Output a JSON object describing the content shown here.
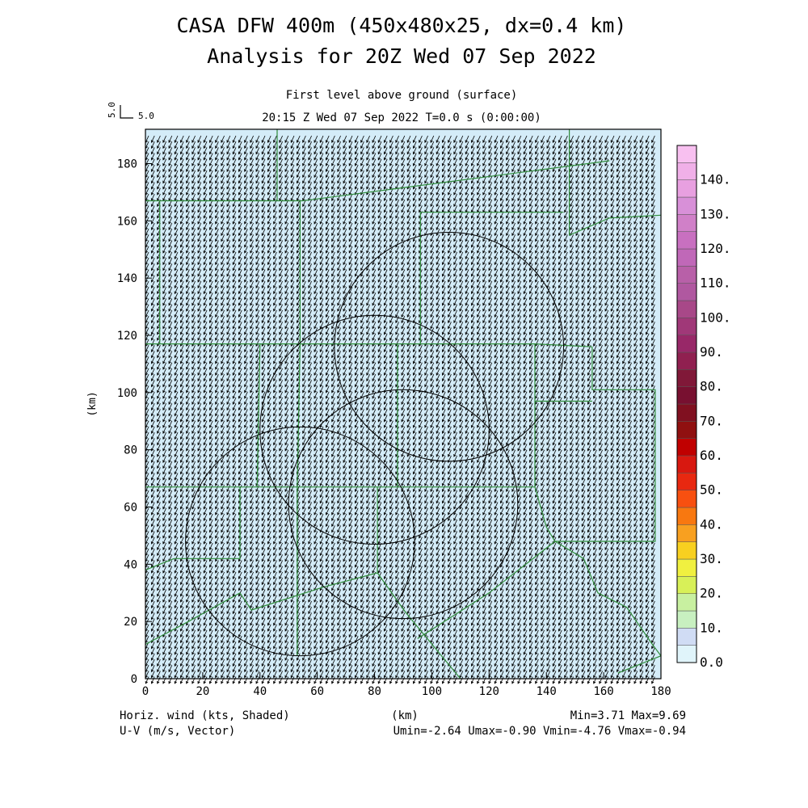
{
  "header": {
    "title_line1": "CASA DFW 400m (450x480x25, dx=0.4 km)",
    "title_line2": "Analysis for 20Z Wed 07 Sep 2022",
    "level": "First level above ground (surface)",
    "time": "20:15 Z Wed 07 Sep 2022   T=0.0 s (0:00:00)"
  },
  "ref_vector": {
    "label_v": "5.0",
    "label_h": "5.0"
  },
  "footer": {
    "left1": "Horiz. wind (kts, Shaded)",
    "left2": "U-V (m/s, Vector)",
    "center": "(km)",
    "right1": "Min=3.71 Max=9.69",
    "right2": "Umin=-2.64 Umax=-0.90 Vmin=-4.76 Vmax=-0.94"
  },
  "chart_data": {
    "type": "heatmap",
    "xlabel": "(km)",
    "ylabel": "(km)",
    "xlim": [
      0,
      180
    ],
    "ylim": [
      0,
      192
    ],
    "x_ticks": [
      0,
      20,
      40,
      60,
      80,
      100,
      120,
      140,
      160,
      180
    ],
    "y_ticks": [
      0,
      20,
      40,
      60,
      80,
      100,
      120,
      140,
      160,
      180
    ],
    "field_color": "#d4ecf8",
    "field_min": 3.71,
    "field_max": 9.69,
    "wind_u_range": [
      -2.64,
      -0.9
    ],
    "wind_v_range": [
      -4.76,
      -0.94
    ],
    "radar_rings": [
      {
        "cx": 54,
        "cy": 48,
        "r": 40
      },
      {
        "cx": 80,
        "cy": 87,
        "r": 40
      },
      {
        "cx": 90,
        "cy": 61,
        "r": 40
      },
      {
        "cx": 106,
        "cy": 116,
        "r": 40
      }
    ],
    "boundaries": [
      [
        [
          0,
          167
        ],
        [
          55,
          167
        ],
        [
          162,
          181
        ]
      ],
      [
        [
          0,
          117
        ],
        [
          40,
          117
        ],
        [
          136,
          117
        ],
        [
          156,
          116
        ]
      ],
      [
        [
          0,
          67
        ],
        [
          33,
          67
        ],
        [
          136,
          67
        ]
      ],
      [
        [
          46,
          192
        ],
        [
          46,
          167
        ]
      ],
      [
        [
          5,
          167
        ],
        [
          5,
          117
        ]
      ],
      [
        [
          54,
          167
        ],
        [
          54,
          117
        ],
        [
          53,
          67
        ],
        [
          53,
          8
        ]
      ],
      [
        [
          40,
          117
        ],
        [
          39,
          67
        ]
      ],
      [
        [
          33,
          67
        ],
        [
          33,
          42
        ],
        [
          10,
          42
        ]
      ],
      [
        [
          33,
          30
        ],
        [
          37,
          24
        ],
        [
          62,
          32
        ],
        [
          81,
          37
        ]
      ],
      [
        [
          0,
          38
        ],
        [
          10,
          42
        ]
      ],
      [
        [
          0,
          12
        ],
        [
          15,
          20
        ],
        [
          33,
          30
        ]
      ],
      [
        [
          81,
          67
        ],
        [
          81,
          37
        ],
        [
          91,
          23
        ],
        [
          110,
          0
        ]
      ],
      [
        [
          88,
          117
        ],
        [
          88,
          67
        ]
      ],
      [
        [
          96,
          117
        ],
        [
          96,
          163
        ],
        [
          107,
          163
        ],
        [
          146,
          163
        ]
      ],
      [
        [
          148,
          192
        ],
        [
          148,
          155
        ],
        [
          162,
          161
        ],
        [
          180,
          162
        ]
      ],
      [
        [
          136,
          117
        ],
        [
          136,
          67
        ],
        [
          140,
          53
        ],
        [
          143,
          48
        ],
        [
          178,
          48
        ],
        [
          178,
          101
        ],
        [
          156,
          101
        ],
        [
          156,
          116
        ]
      ],
      [
        [
          136,
          97
        ],
        [
          156,
          97
        ]
      ],
      [
        [
          95,
          14
        ],
        [
          120,
          30
        ],
        [
          143,
          48
        ]
      ],
      [
        [
          143,
          48
        ],
        [
          153,
          42
        ],
        [
          158,
          30
        ],
        [
          168,
          25
        ],
        [
          177,
          12
        ],
        [
          180,
          8
        ]
      ],
      [
        [
          165,
          2
        ],
        [
          180,
          8
        ]
      ]
    ]
  },
  "colorbar": {
    "labels": [
      "0.0",
      "10.",
      "20.",
      "30.",
      "40.",
      "50.",
      "60.",
      "70.",
      "80.",
      "90.",
      "100.",
      "110.",
      "120.",
      "130.",
      "140."
    ],
    "colors": [
      "#e0f4fa",
      "#d0dcf4",
      "#c8f0c0",
      "#c8f0a0",
      "#d8f058",
      "#f0f040",
      "#f8d020",
      "#f8a020",
      "#f87810",
      "#f85010",
      "#e82810",
      "#d81810",
      "#c00000",
      "#901010",
      "#801020",
      "#781030",
      "#801838",
      "#902050",
      "#982868",
      "#a03878",
      "#a84888",
      "#b058a0",
      "#b860a8",
      "#c068b8",
      "#c870c0",
      "#d080c8",
      "#d890d8",
      "#e8a0e0",
      "#f0b0e8",
      "#f8c0f0"
    ]
  }
}
